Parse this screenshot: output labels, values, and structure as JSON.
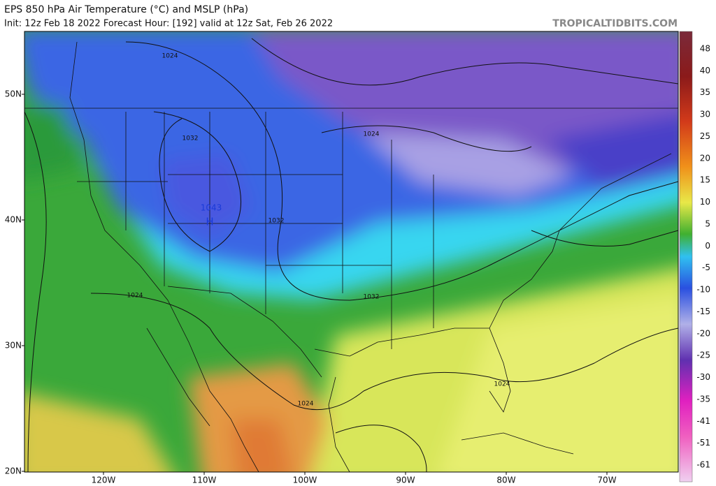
{
  "header": {
    "title": "EPS 850 hPa Air Temperature (°C) and MSLP (hPa)",
    "subtitle": "Init: 12z Feb 18 2022   Forecast Hour: [192]   valid at 12z Sat, Feb 26 2022",
    "watermark": "TROPICALTIDBITS.COM"
  },
  "map": {
    "latitude_labels": [
      "50N",
      "40N",
      "30N",
      "20N"
    ],
    "longitude_labels": [
      "120W",
      "110W",
      "100W",
      "90W",
      "80W",
      "70W"
    ],
    "isobar_labels": [
      "1024",
      "1032",
      "1024",
      "1032",
      "1032",
      "1024",
      "1024",
      "1024"
    ],
    "high_pressure": {
      "symbol": "H",
      "value": "1043"
    }
  },
  "colorbar": {
    "ticks": [
      48,
      40,
      35,
      30,
      25,
      20,
      15,
      10,
      5,
      0,
      -5,
      -10,
      -15,
      -20,
      -25,
      -30,
      -35,
      -41,
      -51,
      -61
    ]
  }
}
